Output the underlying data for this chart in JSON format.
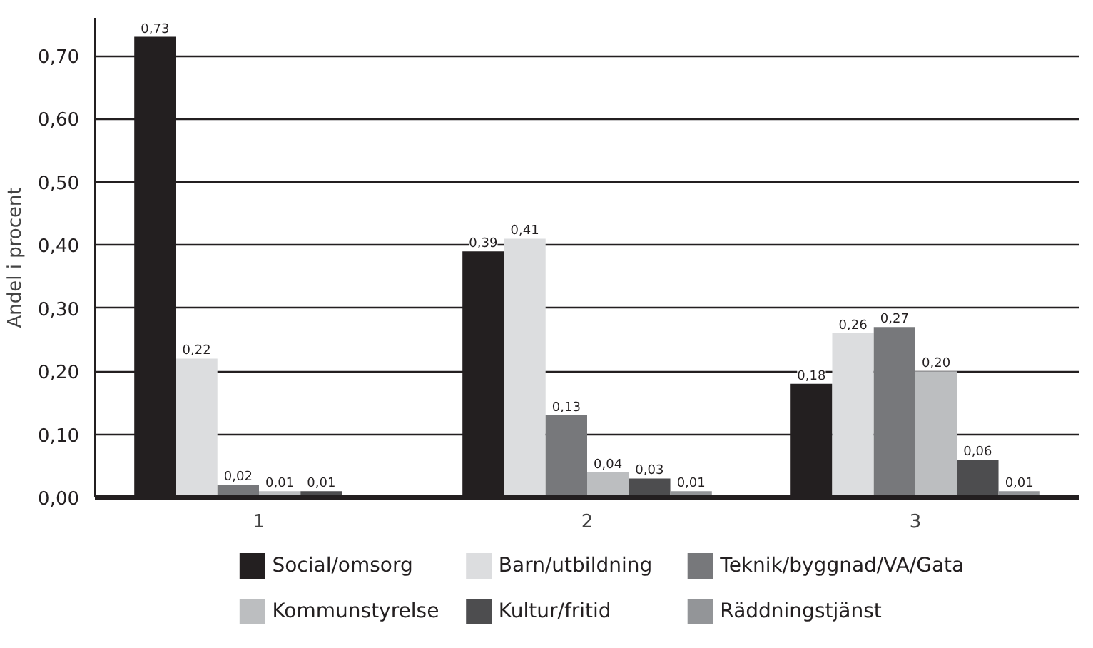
{
  "chart_data": {
    "type": "bar",
    "ylabel": "Andel i procent",
    "categories": [
      "1",
      "2",
      "3"
    ],
    "series": [
      {
        "name": "Social/omsorg",
        "color": "#231f20",
        "values": [
          0.73,
          0.39,
          0.18
        ],
        "value_labels": [
          "0,73",
          "0,39",
          "0,18"
        ]
      },
      {
        "name": "Barn/utbildning",
        "color": "#dcdddf",
        "values": [
          0.22,
          0.41,
          0.26
        ],
        "value_labels": [
          "0,22",
          "0,41",
          "0,26"
        ]
      },
      {
        "name": "Teknik/byggnad/VA/Gata",
        "color": "#77787b",
        "values": [
          0.02,
          0.13,
          0.27
        ],
        "value_labels": [
          "0,02",
          "0,13",
          "0,27"
        ]
      },
      {
        "name": "Kommunstyrelse",
        "color": "#bcbec0",
        "values": [
          0.01,
          0.04,
          0.2
        ],
        "value_labels": [
          "0,01",
          "0,04",
          "0,20"
        ]
      },
      {
        "name": "Kultur/fritid",
        "color": "#4d4d4f",
        "values": [
          0.01,
          0.03,
          0.06
        ],
        "value_labels": [
          "0,01",
          "0,03",
          "0,06"
        ]
      },
      {
        "name": "Räddningstjänst",
        "color": "#939598",
        "values": [
          null,
          0.01,
          0.01
        ],
        "value_labels": [
          null,
          "0,01",
          "0,01"
        ]
      }
    ],
    "ylim": [
      0,
      0.76
    ],
    "yticks": [
      {
        "value": 0,
        "label": "0,00"
      },
      {
        "value": 0.1,
        "label": "0,10"
      },
      {
        "value": 0.2,
        "label": "0,20"
      },
      {
        "value": 0.3,
        "label": "0,30"
      },
      {
        "value": 0.4,
        "label": "0,40"
      },
      {
        "value": 0.5,
        "label": "0,50"
      },
      {
        "value": 0.6,
        "label": "0,60"
      },
      {
        "value": 0.7,
        "label": "0,70"
      }
    ],
    "grid": "y",
    "legend": "bottom"
  }
}
